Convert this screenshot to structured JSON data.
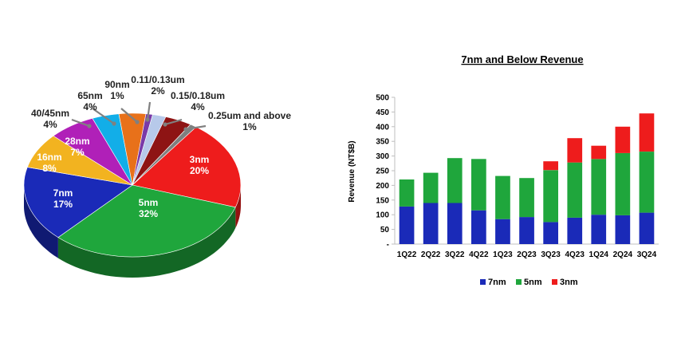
{
  "chart_data": [
    {
      "type": "pie",
      "title": "",
      "slices": [
        {
          "label": "3nm",
          "pct_label": "20%",
          "value": 20,
          "color": "#ee1c1c",
          "label_color": "#ffffff"
        },
        {
          "label": "5nm",
          "pct_label": "32%",
          "value": 32,
          "color": "#1fa63c",
          "label_color": "#ffffff"
        },
        {
          "label": "7nm",
          "pct_label": "17%",
          "value": 17,
          "color": "#1a2ab8",
          "label_color": "#ffffff"
        },
        {
          "label": "16nm",
          "pct_label": "8%",
          "value": 8,
          "color": "#f2b320",
          "label_color": "#ffffff"
        },
        {
          "label": "28nm",
          "pct_label": "7%",
          "value": 7,
          "color": "#b020b8",
          "label_color": "#ffffff"
        },
        {
          "label": "40/45nm",
          "pct_label": "4%",
          "value": 4,
          "color": "#12aee8",
          "label_color": "#222222"
        },
        {
          "label": "65nm",
          "pct_label": "4%",
          "value": 4,
          "color": "#e8711a",
          "label_color": "#222222"
        },
        {
          "label": "90nm",
          "pct_label": "1%",
          "value": 1,
          "color": "#7a3aa8",
          "label_color": "#222222"
        },
        {
          "label": "0.11/0.13um",
          "pct_label": "2%",
          "value": 2,
          "color": "#b7c9ea",
          "label_color": "#222222"
        },
        {
          "label": "0.15/0.18um",
          "pct_label": "4%",
          "value": 4,
          "color": "#8e1414",
          "label_color": "#222222"
        },
        {
          "label": "0.25um and above",
          "pct_label": "1%",
          "value": 1,
          "color": "#7f7f7f",
          "label_color": "#222222"
        }
      ]
    },
    {
      "type": "bar",
      "stacked": true,
      "title": "7nm and Below Revenue",
      "xlabel": "",
      "ylabel": "Revenue (NT$B)",
      "ylim": [
        0,
        500
      ],
      "yticks": [
        0,
        50,
        100,
        150,
        200,
        250,
        300,
        350,
        400,
        450,
        500
      ],
      "yticklabels": [
        "-",
        "50",
        "100",
        "150",
        "200",
        "250",
        "300",
        "350",
        "400",
        "450",
        "500"
      ],
      "categories": [
        "1Q22",
        "2Q22",
        "3Q22",
        "4Q22",
        "1Q23",
        "2Q23",
        "3Q23",
        "4Q23",
        "1Q24",
        "2Q24",
        "3Q24"
      ],
      "series": [
        {
          "name": "7nm",
          "color": "#1a2ab8",
          "values": [
            128,
            140,
            140,
            115,
            85,
            92,
            75,
            90,
            100,
            98,
            107
          ]
        },
        {
          "name": "5nm",
          "color": "#1fa63c",
          "values": [
            92,
            103,
            153,
            175,
            147,
            133,
            177,
            188,
            190,
            212,
            208
          ]
        },
        {
          "name": "3nm",
          "color": "#ee1c1c",
          "values": [
            0,
            0,
            0,
            0,
            0,
            0,
            30,
            83,
            45,
            90,
            130
          ]
        }
      ],
      "legend_position": "bottom"
    }
  ]
}
